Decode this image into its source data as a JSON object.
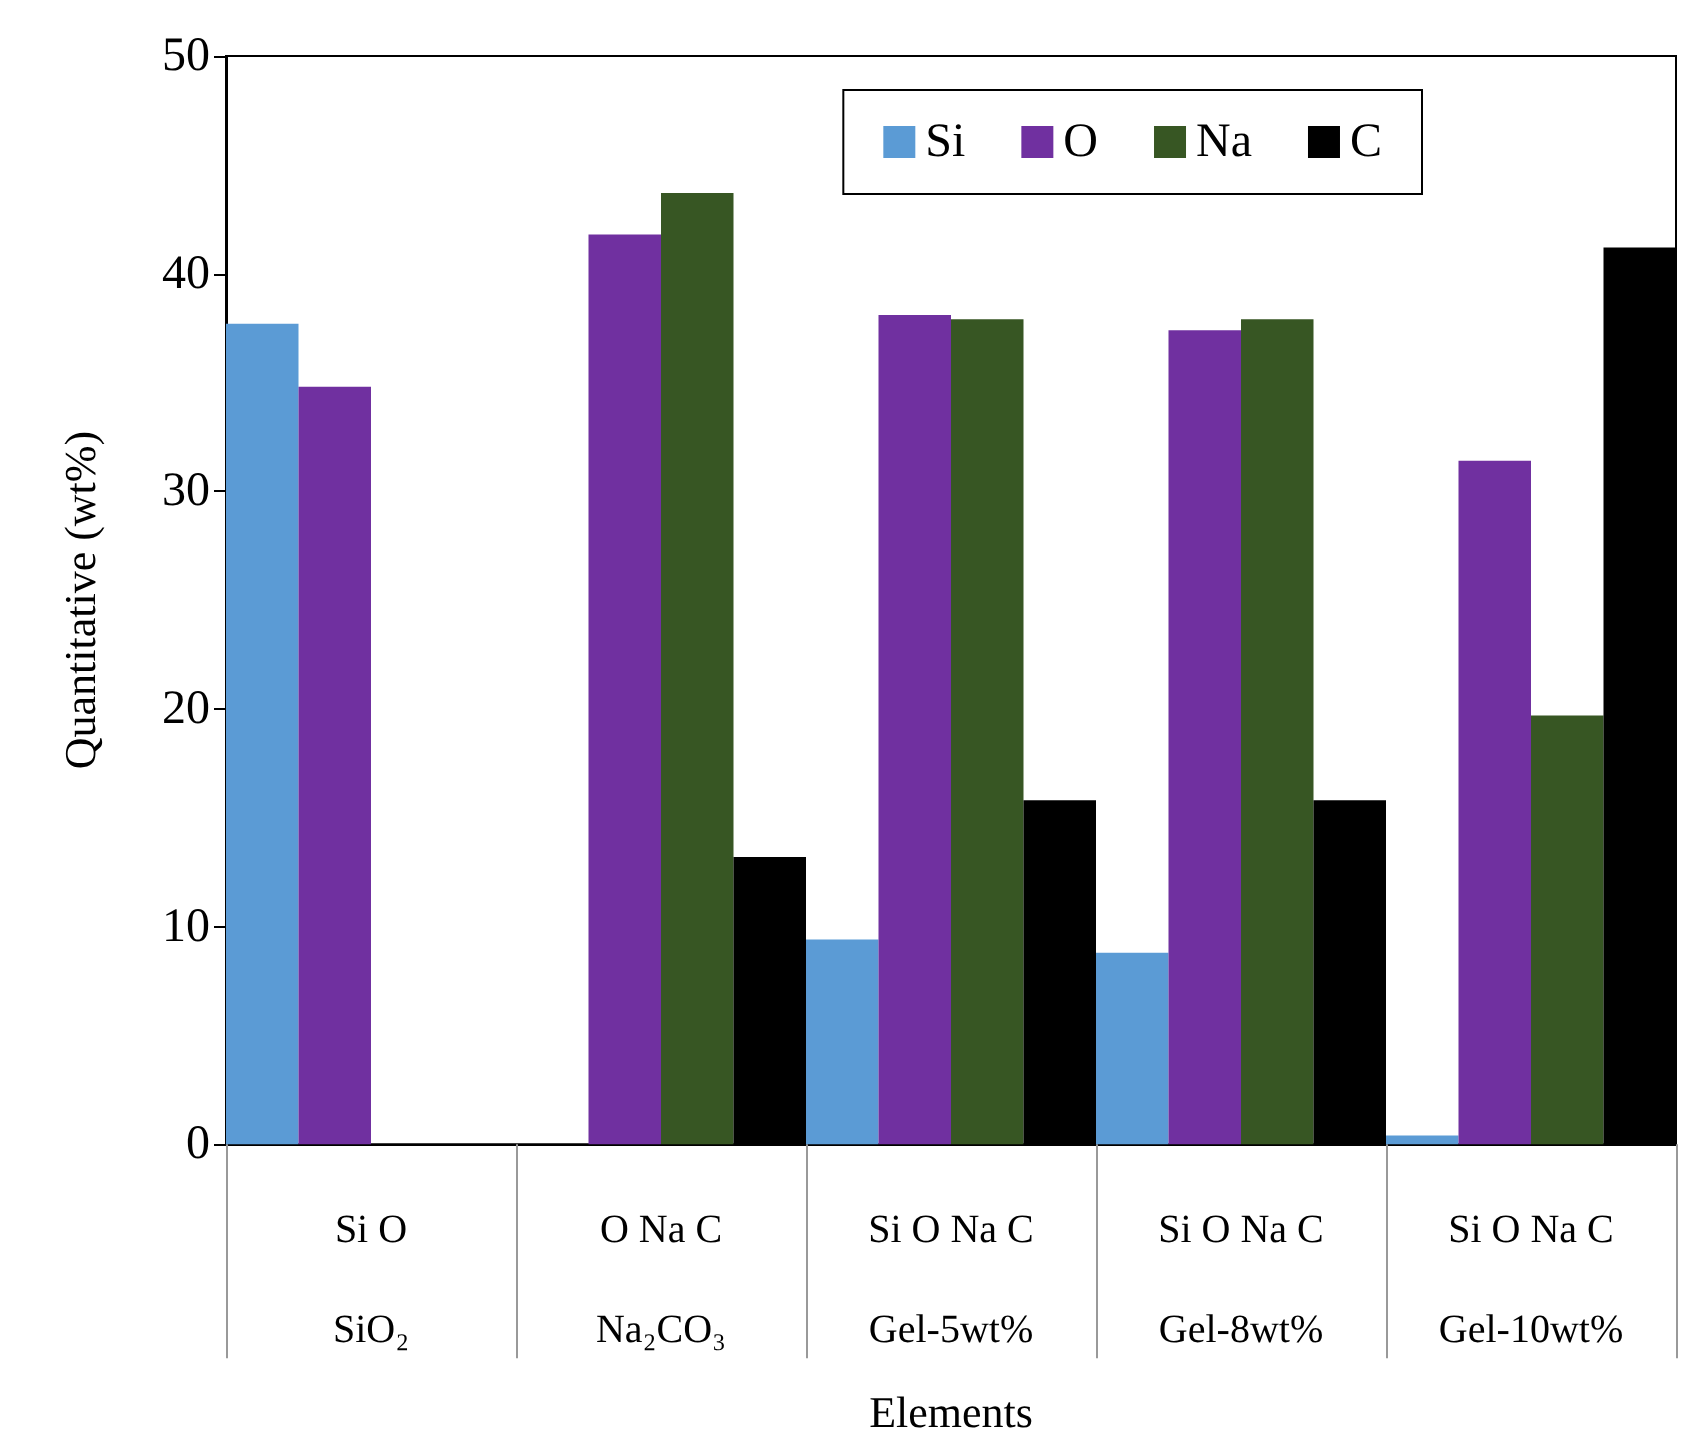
{
  "chart_data": {
    "type": "bar",
    "xlabel": "Elements",
    "ylabel": "Quantitative (wt%)",
    "categories": [
      "SiO₂",
      "Na₂CO₃",
      "Gel-5wt%",
      "Gel-8wt%",
      "Gel-10wt%"
    ],
    "annotations": [
      "Si O",
      "O Na C",
      "Si O Na C",
      "Si O Na C",
      "Si O Na C"
    ],
    "series": [
      {
        "name": "Si",
        "color": "#5b9bd5",
        "values": [
          37.7,
          null,
          9.4,
          8.8,
          0.4
        ]
      },
      {
        "name": "O",
        "color": "#7030a0",
        "values": [
          34.8,
          41.8,
          38.1,
          37.4,
          31.4
        ]
      },
      {
        "name": "Na",
        "color": "#375623",
        "values": [
          null,
          43.7,
          37.9,
          37.9,
          19.7
        ]
      },
      {
        "name": "C",
        "color": "#000000",
        "values": [
          null,
          13.2,
          15.8,
          15.8,
          41.2
        ]
      }
    ],
    "ylim": [
      0,
      50
    ],
    "yticks": [
      0,
      10,
      20,
      30,
      40,
      50
    ],
    "grid": false,
    "legend": "top right"
  }
}
